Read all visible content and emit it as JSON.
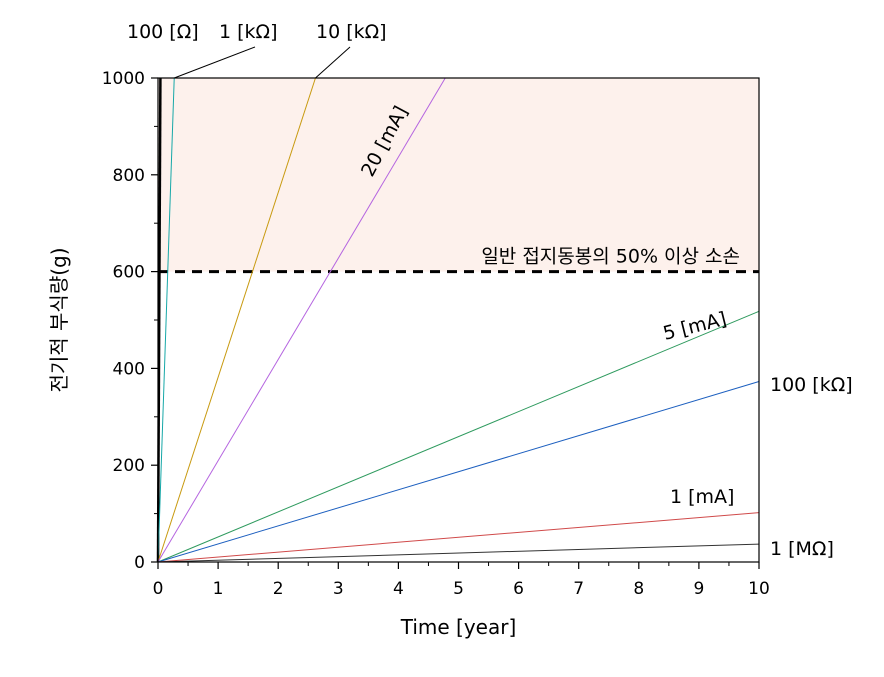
{
  "chart_data": {
    "type": "line",
    "xlabel": "Time [year]",
    "ylabel": "전기적 부식량(g)",
    "xlim": [
      0,
      10
    ],
    "ylim": [
      0,
      1000
    ],
    "x_ticks": [
      "0",
      "1",
      "2",
      "3",
      "4",
      "5",
      "6",
      "7",
      "8",
      "9",
      "10"
    ],
    "y_ticks": [
      "0",
      "200",
      "400",
      "600",
      "800",
      "1000"
    ],
    "grid": false,
    "legend": "none",
    "series": [
      {
        "name": "100 [Ω]",
        "x": [
          0,
          0.04
        ],
        "y": [
          0,
          1000
        ],
        "color": "#000000"
      },
      {
        "name": "1 [kΩ]",
        "x": [
          0,
          0.27
        ],
        "y": [
          0,
          1000
        ],
        "color": "#17a8a8"
      },
      {
        "name": "10 [kΩ]",
        "x": [
          0,
          2.62
        ],
        "y": [
          0,
          1000
        ],
        "color": "#c89a10"
      },
      {
        "name": "20 [mA]",
        "x": [
          0,
          4.78
        ],
        "y": [
          0,
          1000
        ],
        "color": "#b565e0"
      },
      {
        "name": "5 [mA]",
        "x": [
          0,
          10
        ],
        "y": [
          0,
          518
        ],
        "color": "#2e9a5e"
      },
      {
        "name": "100 [kΩ]",
        "x": [
          0,
          10
        ],
        "y": [
          0,
          373
        ],
        "color": "#1c5fbf"
      },
      {
        "name": "1 [mA]",
        "x": [
          0,
          10
        ],
        "y": [
          0,
          102
        ],
        "color": "#d04a4a"
      },
      {
        "name": "1 [MΩ]",
        "x": [
          0,
          10
        ],
        "y": [
          0,
          37
        ],
        "color": "#333333"
      }
    ],
    "threshold": {
      "y": 600,
      "label": "일반 접지동봉의 50% 이상 소손",
      "color": "#000000"
    },
    "shaded_region": {
      "y_from": 600,
      "y_to": 1000,
      "color": "#fdf1ec"
    }
  }
}
